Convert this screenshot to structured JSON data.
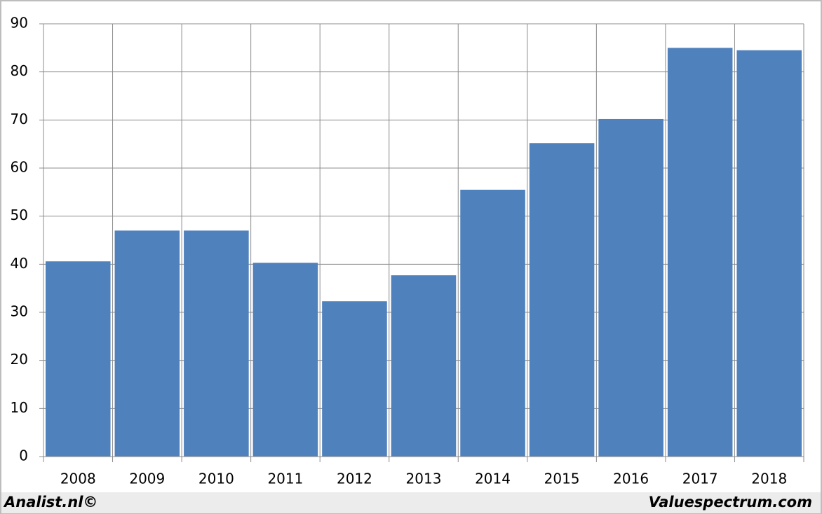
{
  "chart_data": {
    "type": "bar",
    "categories": [
      "2008",
      "2009",
      "2010",
      "2011",
      "2012",
      "2013",
      "2014",
      "2015",
      "2016",
      "2017",
      "2018"
    ],
    "values": [
      40.6,
      47.0,
      47.0,
      40.3,
      32.3,
      37.7,
      55.5,
      65.2,
      70.2,
      85.0,
      84.5
    ],
    "color": "#4f81bd",
    "ylim": [
      0,
      90
    ],
    "yticks": [
      0,
      10,
      20,
      30,
      40,
      50,
      60,
      70,
      80,
      90
    ],
    "grid": true,
    "source_left": "Analist.nl©",
    "source_right": "Valuespectrum.com"
  }
}
